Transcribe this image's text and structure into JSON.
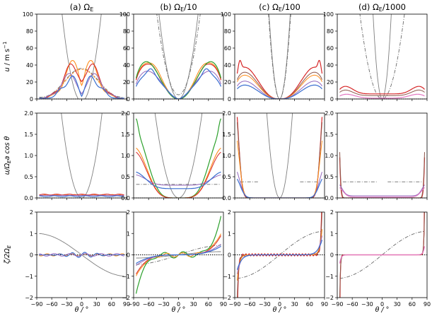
{
  "figure": {
    "description_free": true,
    "colors": {
      "blue": "#3a6fd0",
      "orange": "#ff8c1a",
      "green": "#2ca02c",
      "red": "#d62728",
      "purple": "#9467bd",
      "brown": "#8c564b",
      "pink": "#e377c2",
      "gray": "#7f7f7f",
      "dashgray": "#6b6b6b",
      "axis": "#000000"
    }
  },
  "chart_data": {
    "type": "line",
    "columns": [
      {
        "title": "(a) Ω",
        "sub": "E",
        "suffix": ""
      },
      {
        "title": "(b) Ω",
        "sub": "E",
        "suffix": "/10"
      },
      {
        "title": "(c) Ω",
        "sub": "E",
        "suffix": "/100"
      },
      {
        "title": "(d) Ω",
        "sub": "E",
        "suffix": "/1000"
      }
    ],
    "rows": [
      {
        "ylabel": "u / m s⁻¹",
        "ylim": [
          0,
          100
        ],
        "yticks": [
          "0",
          "20",
          "40",
          "60",
          "80",
          "100"
        ],
        "yvals": [
          0,
          20,
          40,
          60,
          80,
          100
        ]
      },
      {
        "ylabel": "u/Ωₑa cos θ",
        "ylim": [
          0,
          2
        ],
        "yticks": [
          "0.0",
          "0.5",
          "1.0",
          "1.5",
          "2.0"
        ],
        "yvals": [
          0,
          0.5,
          1,
          1.5,
          2
        ]
      },
      {
        "ylabel": "ζ/2Ωₑ",
        "ylim": [
          -2,
          2
        ],
        "yticks": [
          "−2",
          "−1",
          "0",
          "1",
          "2"
        ],
        "yvals": [
          -2,
          -1,
          0,
          1,
          2
        ]
      }
    ],
    "xlabel": "θ / °",
    "xlim": [
      -90,
      90
    ],
    "xtick_sets": {
      "a": {
        "vals": [
          -90,
          -60,
          -30,
          0,
          30,
          60,
          90
        ],
        "labels": [
          "−90",
          "−60",
          "−30",
          "0",
          "30",
          "60",
          "90"
        ]
      },
      "b": {
        "vals": [
          -90,
          -60,
          -30,
          0,
          30,
          60,
          90
        ],
        "labels": [
          "−90",
          "−60",
          "−30",
          "0",
          "30",
          "60",
          "90"
        ]
      },
      "c": {
        "vals": [
          -90,
          -60,
          -30,
          0,
          30,
          60,
          90
        ],
        "labels": [
          "−90",
          "−60",
          "−30",
          "0",
          "30",
          "60",
          "90"
        ]
      },
      "d": {
        "vals": [
          -90,
          -60,
          -30,
          0,
          30,
          60,
          90
        ],
        "labels": [
          "−90",
          "−60",
          "−30",
          "0",
          "30",
          "60",
          "90"
        ]
      }
    },
    "xlabel_text": "θ / °",
    "ylabels": {
      "row0_main": "u",
      "row0_units": " / m s",
      "row0_sup": "−1",
      "row1": "u/Ω",
      "row1_sub": "E",
      "row1_rest": "a cos θ",
      "row2": "ζ/2Ω",
      "row2_sub": "E"
    }
  }
}
